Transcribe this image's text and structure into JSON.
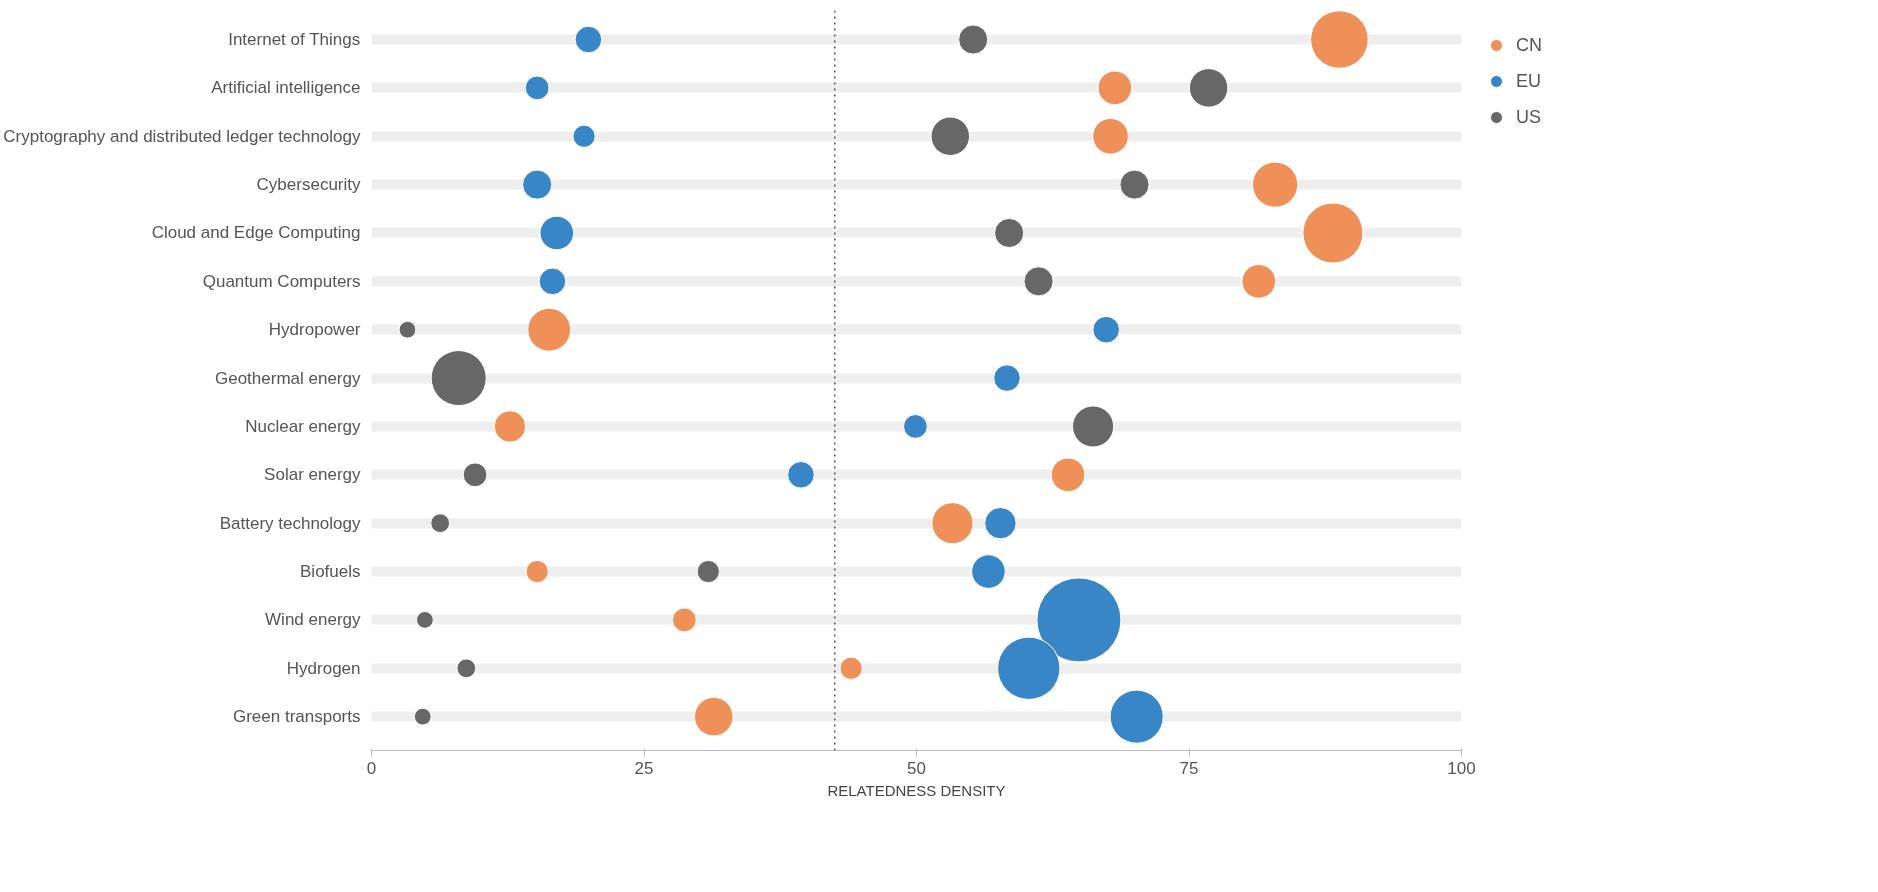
{
  "chart_data": {
    "type": "bubble",
    "xlabel": "RELATEDNESS DENSITY",
    "categories": [
      "Internet of Things",
      "Artificial intelligence",
      "Cryptography and distributed ledger technology",
      "Cybersecurity",
      "Cloud and Edge Computing",
      "Quantum Computers",
      "Hydropower",
      "Geothermal energy",
      "Nuclear energy",
      "Solar energy",
      "Battery technology",
      "Biofuels",
      "Wind energy",
      "Hydrogen",
      "Green transports"
    ],
    "orientation": "horizontal",
    "series": [
      {
        "name": "CN",
        "color": "#ed8a4f",
        "values": [
          88.8,
          68.2,
          67.8,
          82.9,
          88.2,
          81.4,
          16.3,
          null,
          12.7,
          63.9,
          53.3,
          15.2,
          28.7,
          44.0,
          31.4
        ],
        "sizes": [
          0.47,
          0.16,
          0.18,
          0.29,
          0.51,
          0.16,
          0.26,
          null,
          0.14,
          0.16,
          0.24,
          0.07,
          0.08,
          0.07,
          0.21
        ]
      },
      {
        "name": "EU",
        "color": "#2e7fc4",
        "values": [
          19.9,
          15.2,
          19.5,
          15.2,
          17.0,
          16.6,
          67.4,
          58.3,
          49.9,
          39.4,
          57.7,
          56.6,
          64.9,
          60.3,
          70.2
        ],
        "sizes": [
          0.1,
          0.08,
          0.07,
          0.12,
          0.16,
          0.1,
          0.1,
          0.1,
          0.08,
          0.1,
          0.14,
          0.16,
          1,
          0.55,
          0.4
        ]
      },
      {
        "name": "US",
        "color": "#5f5f5f",
        "values": [
          55.2,
          76.8,
          53.1,
          70.0,
          58.5,
          61.2,
          3.3,
          8.0,
          66.2,
          9.5,
          6.3,
          30.9,
          4.9,
          8.7,
          4.7
        ],
        "sizes": [
          0.12,
          0.21,
          0.21,
          0.12,
          0.12,
          0.12,
          0.04,
          0.43,
          0.24,
          0.08,
          0.05,
          0.07,
          0.04,
          0.05,
          0.04
        ]
      }
    ],
    "xlim": [
      0,
      100
    ],
    "xticks": [
      0,
      25,
      50,
      75,
      100
    ],
    "ref_lines": [
      {
        "axis": "x",
        "value": 42.5,
        "color": "#555555",
        "line_style": "dotted"
      }
    ],
    "grid": "y",
    "legend": "top right",
    "marker": "circle"
  }
}
